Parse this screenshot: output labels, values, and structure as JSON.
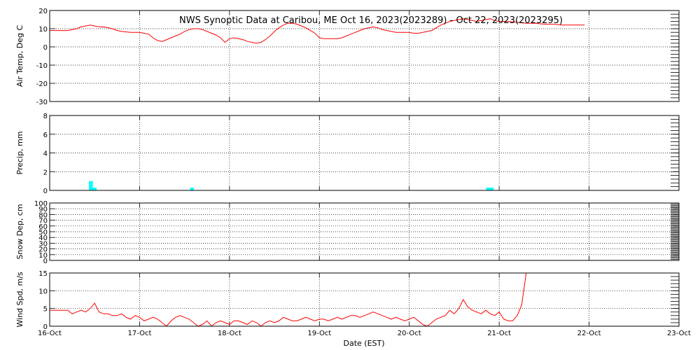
{
  "title": "NWS Synoptic Data at Caribou, ME   Oct 16, 2023(2023289) - Oct 22, 2023(2023295)",
  "x_axis_label": "Date (EST)",
  "x_tick_labels": [
    "16-Oct",
    "17-Oct",
    "18-Oct",
    "19-Oct",
    "20-Oct",
    "21-Oct",
    "22-Oct",
    "23-Oct"
  ],
  "chart_data": [
    {
      "type": "line",
      "ylabel": "Air Temp, Deg C",
      "ylim": [
        -30,
        20
      ],
      "yticks": [
        -30,
        -20,
        -10,
        0,
        10,
        20
      ],
      "xlim": [
        0,
        7
      ],
      "grid": true,
      "color": "#ff0000",
      "series": [
        {
          "x": [
            0,
            0.1,
            0.2,
            0.3,
            0.35,
            0.4,
            0.45,
            0.5,
            0.55,
            0.6,
            0.65,
            0.7,
            0.75,
            0.8,
            0.9,
            1.0,
            1.1,
            1.15,
            1.2,
            1.25,
            1.3,
            1.35,
            1.4,
            1.45,
            1.5,
            1.55,
            1.6,
            1.65,
            1.7,
            1.75,
            1.8,
            1.85,
            1.9,
            1.95,
            2.0,
            2.05,
            2.1,
            2.15,
            2.2,
            2.25,
            2.3,
            2.35,
            2.4,
            2.45,
            2.5,
            2.55,
            2.6,
            2.65,
            2.7,
            2.75,
            2.8,
            2.85,
            2.9,
            2.95,
            3.0,
            3.05,
            3.1,
            3.15,
            3.2,
            3.25,
            3.3,
            3.35,
            3.4,
            3.45,
            3.5,
            3.55,
            3.6,
            3.65,
            3.7,
            3.75,
            3.8,
            3.85,
            3.9,
            3.95,
            4.0,
            4.05,
            4.1,
            4.15,
            4.2,
            4.25,
            4.3,
            4.35,
            4.4,
            4.45,
            4.5,
            4.55,
            4.6,
            4.65,
            4.7,
            4.75,
            4.8,
            4.85,
            4.9,
            4.95,
            5.0,
            5.1,
            5.2,
            5.3,
            5.4,
            5.5,
            5.6,
            5.7,
            5.8,
            5.95
          ],
          "values": [
            9,
            9,
            9,
            10,
            11,
            11.5,
            12,
            11.5,
            11,
            11,
            10.5,
            10,
            9,
            8.5,
            8,
            8,
            7,
            5,
            3.5,
            3,
            4,
            5,
            6,
            7,
            8.5,
            9.5,
            10,
            10,
            9.5,
            8.5,
            7.5,
            6.5,
            5,
            2.5,
            4.5,
            5,
            4.5,
            4,
            3,
            2.5,
            2,
            2.5,
            4,
            6,
            8.5,
            10.5,
            12,
            13,
            13,
            12.5,
            11.5,
            10.5,
            9,
            7.5,
            5,
            4.5,
            4.5,
            4.5,
            4.5,
            5,
            6,
            7,
            8,
            9,
            10,
            10.5,
            11,
            10.5,
            9.5,
            9,
            8.5,
            8,
            8,
            8,
            8,
            7.5,
            7.5,
            8,
            8.5,
            9,
            10.5,
            12,
            13,
            14,
            14.5,
            15,
            15.5,
            15,
            14.5,
            14,
            14.5,
            15,
            15.5,
            14.5,
            14,
            14,
            13.5,
            13,
            13,
            12.5,
            12.5,
            12,
            12,
            12
          ]
        }
      ]
    },
    {
      "type": "bar",
      "ylabel": "Precip, mm",
      "ylim": [
        0,
        8
      ],
      "yticks": [
        0,
        2,
        4,
        6,
        8
      ],
      "xlim": [
        0,
        7
      ],
      "grid": true,
      "color": "#00ffff",
      "bar_width_days": 0.042,
      "series": [
        {
          "x": [
            0.458,
            0.5,
            1.583,
            4.875,
            4.917
          ],
          "values": [
            1.0,
            0.3,
            0.3,
            0.3,
            0.3
          ]
        }
      ]
    },
    {
      "type": "line",
      "ylabel": "Snow Dep, cm",
      "ylim": [
        0,
        100
      ],
      "yticks": [
        0,
        10,
        20,
        30,
        40,
        50,
        60,
        70,
        80,
        90,
        100
      ],
      "xlim": [
        0,
        7
      ],
      "grid": true,
      "color": "#ff0000",
      "series": [
        {
          "x": [],
          "values": []
        }
      ]
    },
    {
      "type": "line",
      "ylabel": "Wind Spd, m/s",
      "ylim": [
        0,
        15
      ],
      "yticks": [
        0,
        5,
        10,
        15
      ],
      "xlim": [
        0,
        7
      ],
      "grid": true,
      "color": "#ff0000",
      "series": [
        {
          "x": [
            0,
            0.1,
            0.2,
            0.25,
            0.3,
            0.35,
            0.4,
            0.45,
            0.5,
            0.55,
            0.6,
            0.65,
            0.7,
            0.75,
            0.8,
            0.85,
            0.9,
            0.95,
            1.0,
            1.05,
            1.1,
            1.15,
            1.2,
            1.25,
            1.3,
            1.35,
            1.4,
            1.45,
            1.5,
            1.55,
            1.6,
            1.65,
            1.7,
            1.75,
            1.8,
            1.85,
            1.9,
            1.95,
            2.0,
            2.05,
            2.1,
            2.15,
            2.2,
            2.25,
            2.3,
            2.35,
            2.4,
            2.45,
            2.5,
            2.55,
            2.6,
            2.65,
            2.7,
            2.75,
            2.8,
            2.85,
            2.9,
            2.95,
            3.0,
            3.05,
            3.1,
            3.15,
            3.2,
            3.25,
            3.3,
            3.35,
            3.4,
            3.45,
            3.5,
            3.55,
            3.6,
            3.65,
            3.7,
            3.75,
            3.8,
            3.85,
            3.9,
            3.95,
            4.0,
            4.05,
            4.1,
            4.15,
            4.2,
            4.25,
            4.3,
            4.35,
            4.4,
            4.45,
            4.5,
            4.55,
            4.6,
            4.65,
            4.7,
            4.75,
            4.8,
            4.85,
            4.9,
            4.95,
            5.0,
            5.05,
            5.1,
            5.15,
            5.2,
            5.25,
            5.3
          ],
          "values": [
            4.5,
            4.5,
            4.5,
            3.5,
            4,
            4.5,
            4,
            5,
            6.5,
            4,
            3.5,
            3.5,
            3,
            3,
            3.5,
            2.5,
            2,
            3,
            2.5,
            1.5,
            2,
            2.5,
            2,
            1,
            0,
            1.5,
            2.5,
            3,
            2.5,
            2,
            1,
            0,
            0.5,
            1.5,
            0,
            1,
            1.5,
            1,
            0.5,
            1.5,
            1.5,
            1,
            0.5,
            1.5,
            1,
            0,
            1,
            1.5,
            1,
            1.5,
            2.5,
            2,
            1.5,
            1.5,
            2,
            2.5,
            2,
            1.5,
            2,
            2,
            1.5,
            2,
            2.5,
            2,
            2.5,
            3,
            3,
            2.5,
            3,
            3.5,
            4,
            3.5,
            3,
            2.5,
            2,
            2.5,
            2,
            1.5,
            2,
            2.5,
            1.5,
            0.5,
            0,
            1,
            2,
            2.5,
            3,
            4.5,
            3.5,
            5,
            7.5,
            5.5,
            4.5,
            4,
            3.5,
            4.5,
            3.5,
            3,
            4,
            2,
            1.5,
            1.5,
            3,
            6,
            15
          ]
        }
      ]
    }
  ]
}
